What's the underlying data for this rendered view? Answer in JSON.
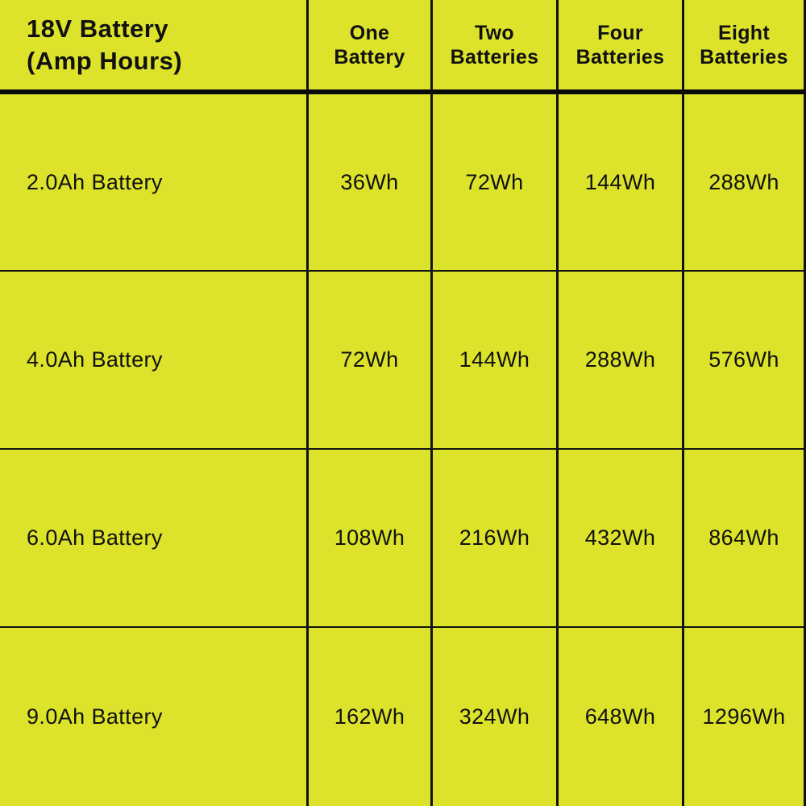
{
  "chart_data": {
    "type": "table",
    "title": "18V Battery (Amp Hours)",
    "title_lines": [
      "18V Battery",
      "(Amp Hours)"
    ],
    "column_headers": [
      [
        "One",
        "Battery"
      ],
      [
        "Two",
        "Batteries"
      ],
      [
        "Four",
        "Batteries"
      ],
      [
        "Eight",
        "Batteries"
      ]
    ],
    "row_headers": [
      "2.0Ah Battery",
      "4.0Ah Battery",
      "6.0Ah Battery",
      "9.0Ah Battery"
    ],
    "cells": [
      [
        "36Wh",
        "72Wh",
        "144Wh",
        "288Wh"
      ],
      [
        "72Wh",
        "144Wh",
        "288Wh",
        "576Wh"
      ],
      [
        "108Wh",
        "216Wh",
        "432Wh",
        "864Wh"
      ],
      [
        "162Wh",
        "324Wh",
        "648Wh",
        "1296Wh"
      ]
    ],
    "values_wh": [
      [
        36,
        72,
        144,
        288
      ],
      [
        72,
        144,
        288,
        576
      ],
      [
        108,
        216,
        432,
        864
      ],
      [
        162,
        324,
        648,
        1296
      ]
    ],
    "unit": "Wh",
    "layout_hints": {
      "grid": "on",
      "header_row": true,
      "header_column": true
    }
  },
  "colors": {
    "background": "#dce32a",
    "text": "#111111",
    "grid_line": "#121212"
  }
}
